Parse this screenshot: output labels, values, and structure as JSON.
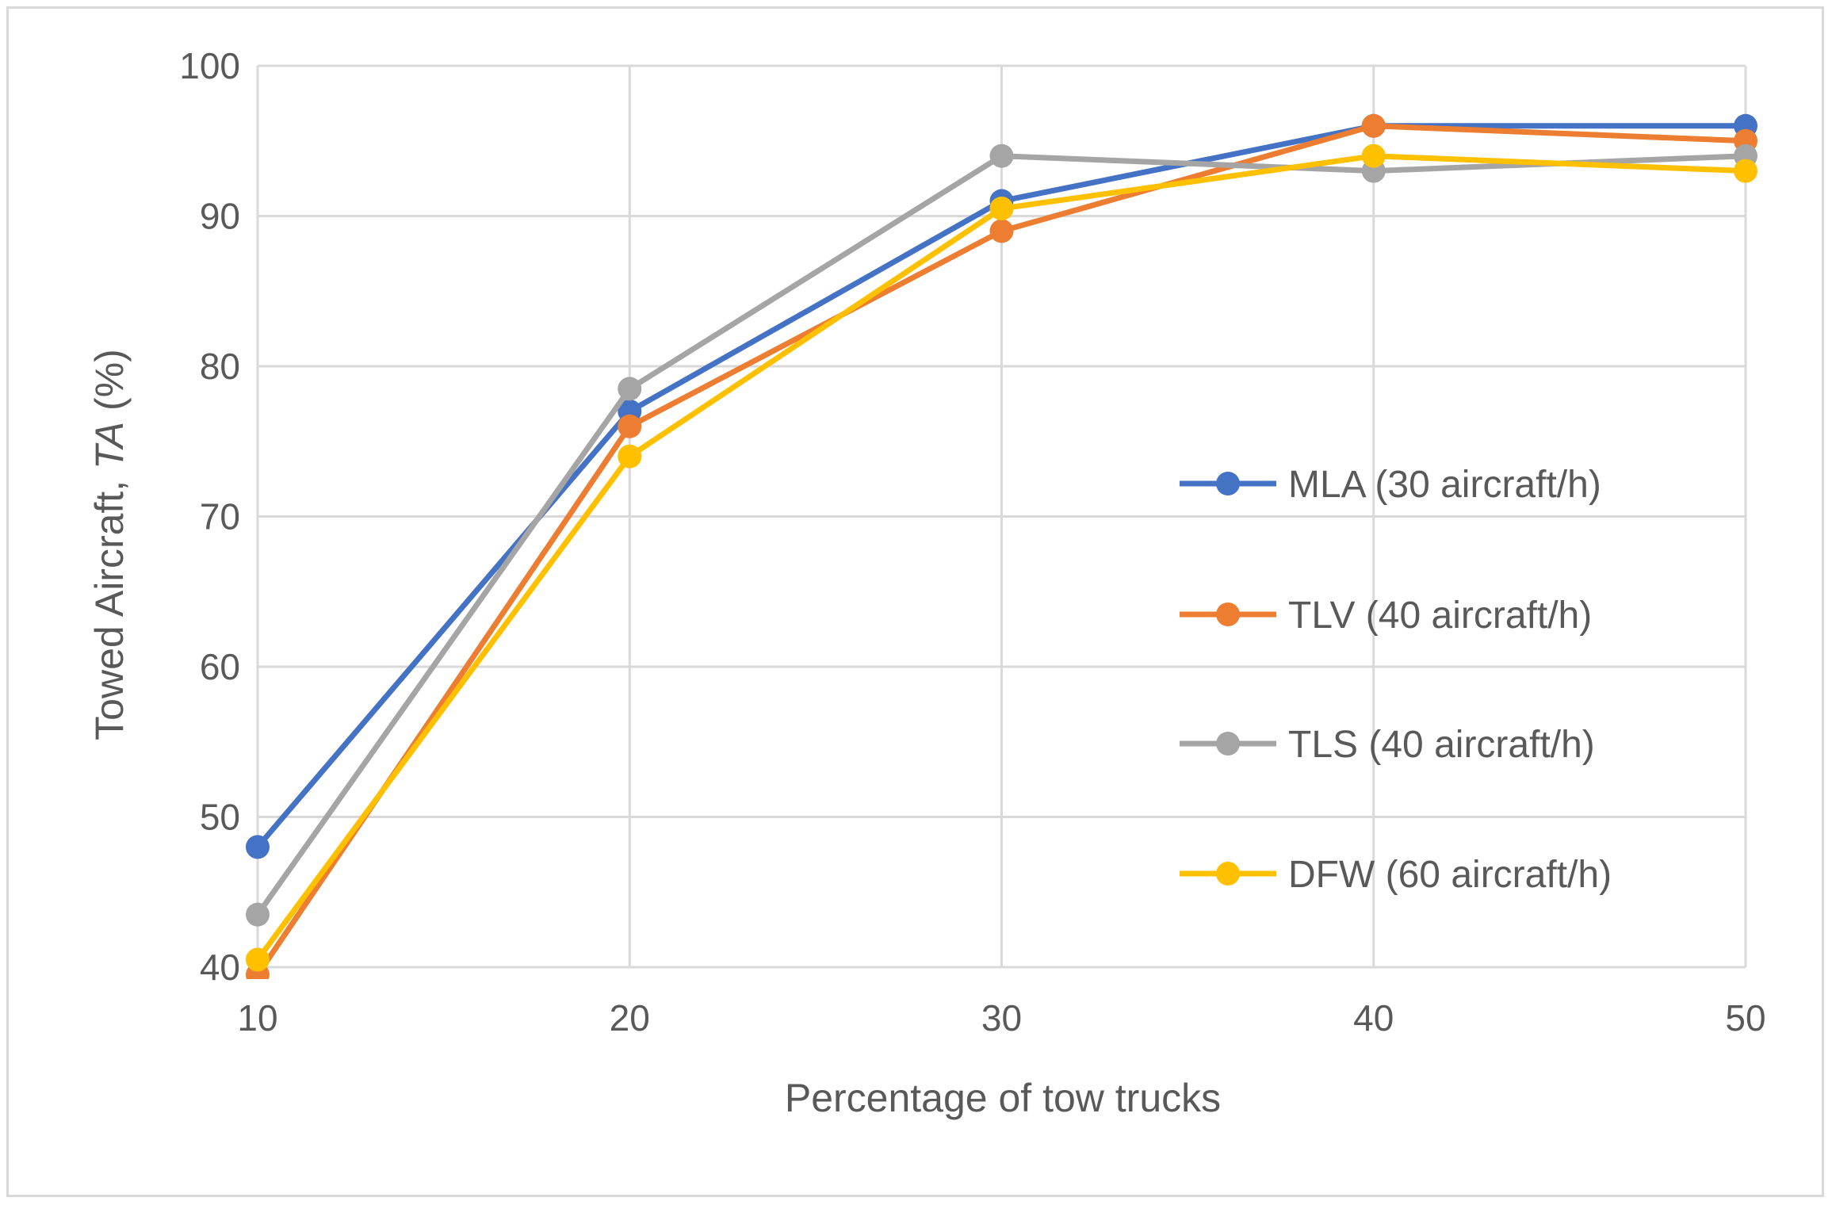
{
  "chart_data": {
    "type": "line",
    "title": "",
    "xlabel": "Percentage of tow trucks",
    "ylabel_prefix": "Towed Aircraft, ",
    "ylabel_italic": "TA",
    "ylabel_suffix": " (%)",
    "x": [
      10,
      20,
      30,
      40,
      50
    ],
    "xlim": [
      10,
      50
    ],
    "ylim": [
      40,
      100
    ],
    "yticks": [
      40,
      50,
      60,
      70,
      80,
      90,
      100
    ],
    "xticks": [
      10,
      20,
      30,
      40,
      50
    ],
    "grid": true,
    "legend_position": "right-center",
    "series": [
      {
        "name": "MLA (30 aircraft/h)",
        "color": "#4472c4",
        "values": [
          48,
          77,
          91,
          96,
          96
        ]
      },
      {
        "name": "TLV (40 aircraft/h)",
        "color": "#ed7d31",
        "values": [
          39.5,
          76,
          89,
          96,
          95
        ]
      },
      {
        "name": "TLS (40 aircraft/h)",
        "color": "#a5a5a5",
        "values": [
          43.5,
          78.5,
          94,
          93,
          94
        ]
      },
      {
        "name": "DFW (60 aircraft/h)",
        "color": "#ffc000",
        "values": [
          40.5,
          74,
          90.5,
          94,
          93
        ]
      }
    ]
  }
}
